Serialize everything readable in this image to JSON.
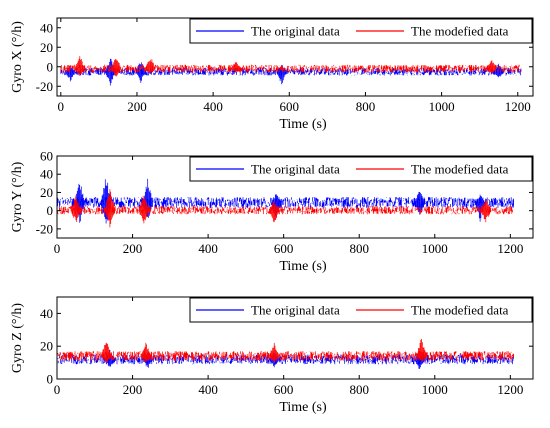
{
  "chart_data": [
    {
      "type": "line",
      "xlabel": "Time (s)",
      "ylabel": "Gyro X (°/h)",
      "xlim": [
        -10,
        1240
      ],
      "ylim": [
        -30,
        50
      ],
      "xticks": [
        0,
        200,
        400,
        600,
        800,
        1000,
        1200
      ],
      "yticks": [
        -20,
        0,
        20,
        40
      ],
      "legend": {
        "position": "top-right",
        "orientation": "horizontal"
      },
      "series": [
        {
          "name": "The original data",
          "color": "#0000ff",
          "x_range": [
            0,
            1210
          ],
          "baseline": -5,
          "noise_band": [
            -9,
            -1
          ],
          "spikes": [
            {
              "x": 25,
              "min": -16,
              "max": 2
            },
            {
              "x": 130,
              "min": -20,
              "max": 10
            },
            {
              "x": 210,
              "min": -17,
              "max": 7
            },
            {
              "x": 580,
              "min": -19,
              "max": 3
            },
            {
              "x": 1150,
              "min": -12,
              "max": 4
            }
          ]
        },
        {
          "name": "The modefied data",
          "color": "#ff0000",
          "x_range": [
            0,
            1210
          ],
          "baseline": -2,
          "noise_band": [
            -6,
            2
          ],
          "spikes": [
            {
              "x": 50,
              "min": -10,
              "max": 12
            },
            {
              "x": 145,
              "min": -12,
              "max": 13
            },
            {
              "x": 235,
              "min": -8,
              "max": 12
            },
            {
              "x": 460,
              "min": -7,
              "max": 7
            },
            {
              "x": 1130,
              "min": -8,
              "max": 9
            }
          ]
        }
      ]
    },
    {
      "type": "line",
      "xlabel": "Time (s)",
      "ylabel": "Gyro Y (°/h)",
      "xlim": [
        0,
        1260
      ],
      "ylim": [
        -30,
        60
      ],
      "xticks": [
        0,
        200,
        400,
        600,
        800,
        1000,
        1200
      ],
      "yticks": [
        -20,
        0,
        20,
        40,
        60
      ],
      "legend": {
        "position": "top-right",
        "orientation": "horizontal"
      },
      "series": [
        {
          "name": "The original data",
          "color": "#0000ff",
          "x_range": [
            0,
            1210
          ],
          "baseline": 8,
          "noise_band": [
            3,
            15
          ],
          "spikes": [
            {
              "x": 60,
              "min": -15,
              "max": 35
            },
            {
              "x": 130,
              "min": -20,
              "max": 40
            },
            {
              "x": 240,
              "min": -12,
              "max": 35
            },
            {
              "x": 580,
              "min": -10,
              "max": 20
            },
            {
              "x": 960,
              "min": -8,
              "max": 28
            },
            {
              "x": 1120,
              "min": -12,
              "max": 20
            }
          ]
        },
        {
          "name": "The modefied data",
          "color": "#ff0000",
          "x_range": [
            0,
            1210
          ],
          "baseline": 1,
          "noise_band": [
            -4,
            5
          ],
          "spikes": [
            {
              "x": 50,
              "min": -15,
              "max": 18
            },
            {
              "x": 140,
              "min": -20,
              "max": 25
            },
            {
              "x": 230,
              "min": -18,
              "max": 20
            },
            {
              "x": 575,
              "min": -15,
              "max": 12
            },
            {
              "x": 1135,
              "min": -14,
              "max": 15
            }
          ]
        }
      ]
    },
    {
      "type": "line",
      "xlabel": "Time (s)",
      "ylabel": "Gyro Z (°/h)",
      "xlim": [
        0,
        1260
      ],
      "ylim": [
        0,
        50
      ],
      "xticks": [
        0,
        200,
        400,
        600,
        800,
        1000,
        1200
      ],
      "yticks": [
        0,
        20,
        40
      ],
      "legend": {
        "position": "top-right",
        "orientation": "horizontal"
      },
      "series": [
        {
          "name": "The original data",
          "color": "#0000ff",
          "x_range": [
            0,
            1210
          ],
          "baseline": 12,
          "noise_band": [
            9,
            15
          ],
          "spikes": [
            {
              "x": 140,
              "min": 6,
              "max": 18
            },
            {
              "x": 240,
              "min": 6,
              "max": 16
            },
            {
              "x": 575,
              "min": 7,
              "max": 17
            },
            {
              "x": 960,
              "min": 5,
              "max": 18
            }
          ]
        },
        {
          "name": "The modefied data",
          "color": "#ff0000",
          "x_range": [
            0,
            1210
          ],
          "baseline": 14,
          "noise_band": [
            11,
            17
          ],
          "spikes": [
            {
              "x": 130,
              "min": 9,
              "max": 25
            },
            {
              "x": 235,
              "min": 10,
              "max": 23
            },
            {
              "x": 575,
              "min": 10,
              "max": 22
            },
            {
              "x": 965,
              "min": 10,
              "max": 26
            }
          ]
        }
      ]
    }
  ]
}
